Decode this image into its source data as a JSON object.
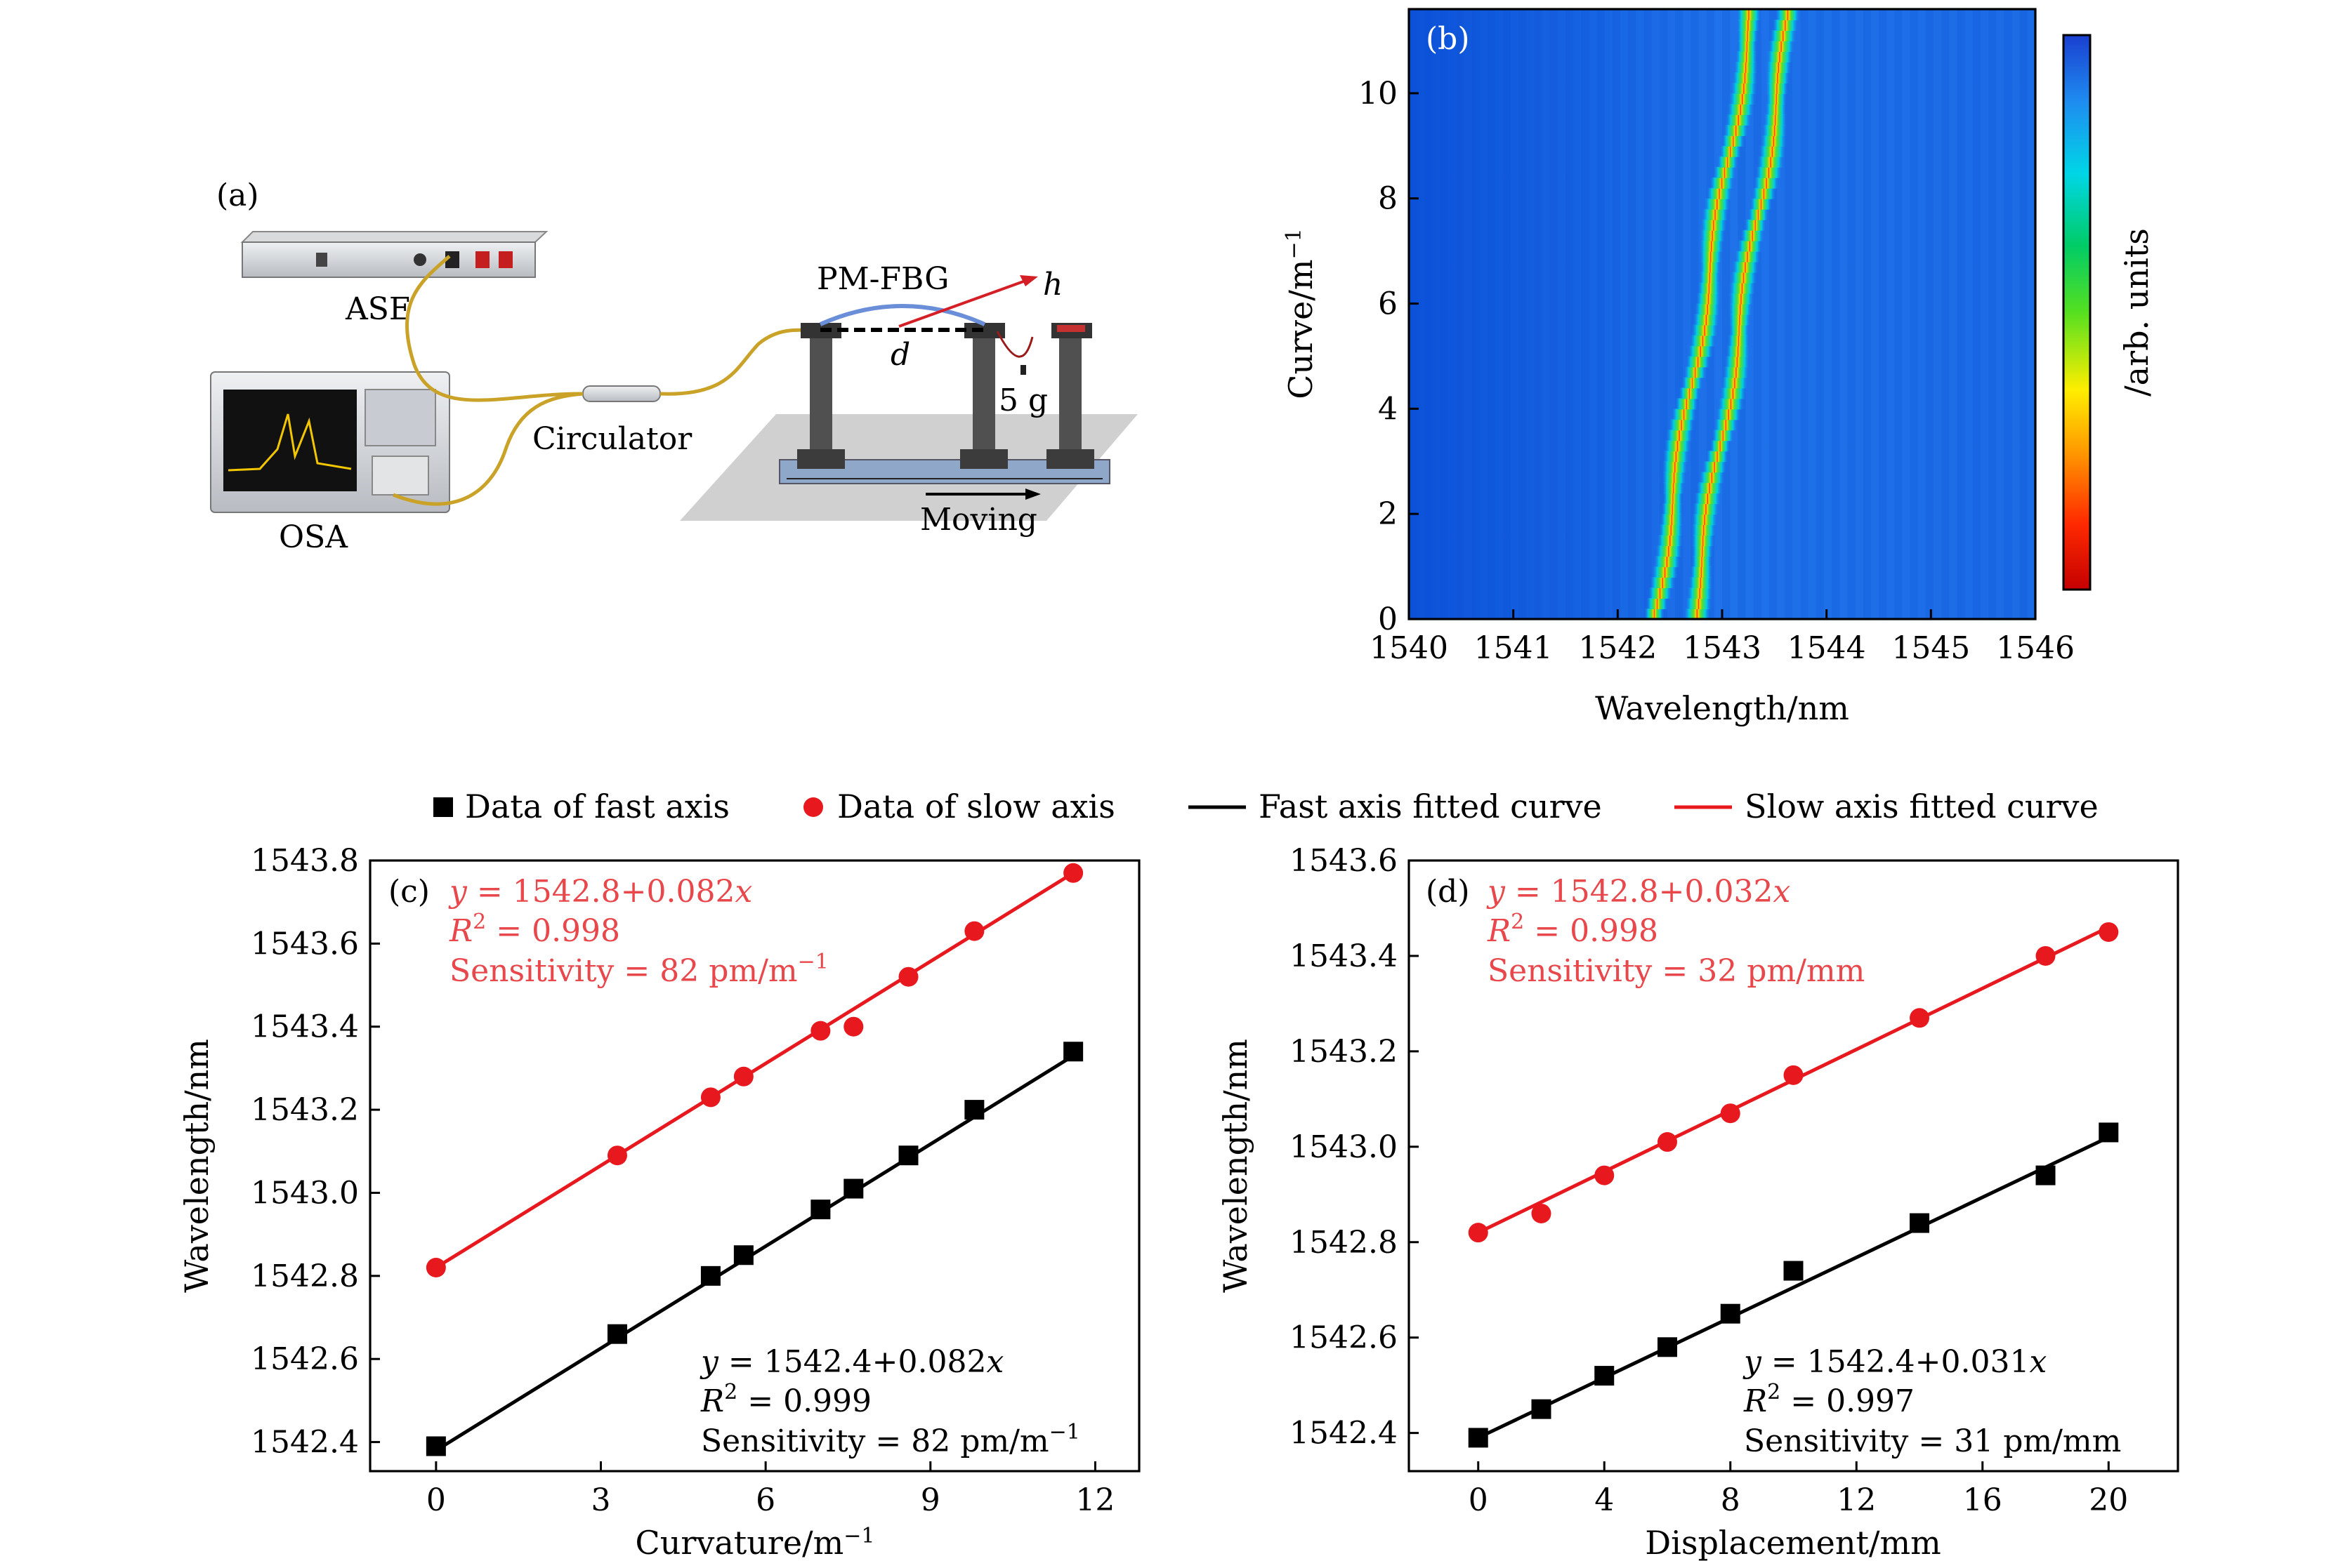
{
  "colors": {
    "fast": "#000000",
    "slow": "#e8181f",
    "slow_text": "#e8474b",
    "fiber": "#c9a227",
    "laser": "#d41f26",
    "heat_bg": "#1f6ee6"
  },
  "panel_a": {
    "label": "(a)",
    "labels": {
      "ase": "ASE",
      "osa": "OSA",
      "circulator": "Circulator",
      "pmfbg": "PM-FBG",
      "h": "h",
      "d": "d",
      "weight": "5 g",
      "moving": "Moving"
    }
  },
  "legend": [
    {
      "label": "Data of fast axis",
      "marker": "square",
      "color": "#000000"
    },
    {
      "label": "Data of slow axis",
      "marker": "circle",
      "color": "#e8181f"
    },
    {
      "label": "Fast axis fitted curve",
      "marker": "line",
      "color": "#000000"
    },
    {
      "label": "Slow axis fitted curve",
      "marker": "line",
      "color": "#e8181f"
    }
  ],
  "chart_data": [
    {
      "id": "b",
      "type": "heatmap",
      "label": "(b)",
      "xlabel": "Wavelength/nm",
      "ylabel": "Curve/m",
      "xlim": [
        1540,
        1546
      ],
      "ylim": [
        0,
        11.6
      ],
      "xticks": [
        1540,
        1541,
        1542,
        1543,
        1544,
        1545,
        1546
      ],
      "yticks": [
        0,
        2,
        4,
        6,
        8,
        10
      ],
      "colorbar_label": "/arb. units",
      "peaks": [
        {
          "axis": "fast",
          "start_wavelength": 1542.35,
          "slope_nm_per_m1": 0.082
        },
        {
          "axis": "slow",
          "start_wavelength": 1542.72,
          "slope_nm_per_m1": 0.082
        }
      ]
    },
    {
      "id": "c",
      "type": "scatter",
      "label": "(c)",
      "xlabel": "Curvature/m",
      "ylabel": "Wavelength/nm",
      "xlim": [
        -1.2,
        12.8
      ],
      "ylim": [
        1542.33,
        1543.8
      ],
      "xticks": [
        0,
        3,
        6,
        9,
        12
      ],
      "yticks": [
        1542.4,
        1542.6,
        1542.8,
        1543.0,
        1543.2,
        1543.4,
        1543.6,
        1543.8
      ],
      "series": [
        {
          "name": "Data of fast axis",
          "marker": "square",
          "x": [
            0,
            3.3,
            5,
            5.6,
            7,
            7.6,
            8.6,
            9.8,
            11.6
          ],
          "y": [
            1542.39,
            1542.66,
            1542.8,
            1542.85,
            1542.96,
            1543.01,
            1543.09,
            1543.2,
            1543.34
          ]
        },
        {
          "name": "Data of slow axis",
          "marker": "circle",
          "x": [
            0,
            3.3,
            5,
            5.6,
            7,
            7.6,
            8.6,
            9.8,
            11.6
          ],
          "y": [
            1542.82,
            1543.09,
            1543.23,
            1543.28,
            1543.39,
            1543.4,
            1543.52,
            1543.63,
            1543.77
          ]
        }
      ],
      "fits": [
        {
          "name": "Fast axis fitted curve",
          "x": [
            0,
            11.6
          ],
          "y": [
            1542.38,
            1543.33
          ]
        },
        {
          "name": "Slow axis fitted curve",
          "x": [
            0,
            11.6
          ],
          "y": [
            1542.82,
            1543.77
          ]
        }
      ],
      "annotations": {
        "slow": {
          "eq_y": "y",
          "eq_mid": " = 1542.8+0.082",
          "eq_x": "x",
          "r2_lead": "R",
          "r2_pow": "2",
          "r2_val": " = 0.998",
          "sens": "Sensitivity = 82 pm/m",
          "sens_pow": "−1"
        },
        "fast": {
          "eq_y": "y",
          "eq_mid": " = 1542.4+0.082",
          "eq_x": "x",
          "r2_lead": "R",
          "r2_pow": "2",
          "r2_val": " = 0.999",
          "sens": "Sensitivity = 82 pm/m",
          "sens_pow": "−1"
        }
      }
    },
    {
      "id": "d",
      "type": "scatter",
      "label": "(d)",
      "xlabel": "Displacement/mm",
      "ylabel": "Wavelength/nm",
      "xlim": [
        -2.2,
        22.2
      ],
      "ylim": [
        1542.32,
        1543.6
      ],
      "xticks": [
        0,
        4,
        8,
        12,
        16,
        20
      ],
      "yticks": [
        1542.4,
        1542.6,
        1542.8,
        1543.0,
        1543.2,
        1543.4,
        1543.6
      ],
      "series": [
        {
          "name": "Data of fast axis",
          "marker": "square",
          "x": [
            0,
            2,
            4,
            6,
            8,
            10,
            14,
            18,
            20
          ],
          "y": [
            1542.39,
            1542.45,
            1542.52,
            1542.58,
            1542.65,
            1542.74,
            1542.84,
            1542.94,
            1543.03
          ]
        },
        {
          "name": "Data of slow axis",
          "marker": "circle",
          "x": [
            0,
            2,
            4,
            6,
            8,
            10,
            14,
            18,
            20
          ],
          "y": [
            1542.82,
            1542.86,
            1542.94,
            1543.01,
            1543.07,
            1543.15,
            1543.27,
            1543.4,
            1543.45
          ]
        }
      ],
      "fits": [
        {
          "name": "Fast axis fitted curve",
          "x": [
            0,
            20
          ],
          "y": [
            1542.39,
            1543.02
          ]
        },
        {
          "name": "Slow axis fitted curve",
          "x": [
            0,
            20
          ],
          "y": [
            1542.82,
            1543.46
          ]
        }
      ],
      "annotations": {
        "slow": {
          "eq_y": "y",
          "eq_mid": " = 1542.8+0.032",
          "eq_x": "x",
          "r2_lead": "R",
          "r2_pow": "2",
          "r2_val": " = 0.998",
          "sens": "Sensitivity = 32 pm/mm"
        },
        "fast": {
          "eq_y": "y",
          "eq_mid": " = 1542.4+0.031",
          "eq_x": "x",
          "r2_lead": "R",
          "r2_pow": "2",
          "r2_val": " = 0.997",
          "sens": "Sensitivity = 31 pm/mm"
        }
      }
    }
  ]
}
